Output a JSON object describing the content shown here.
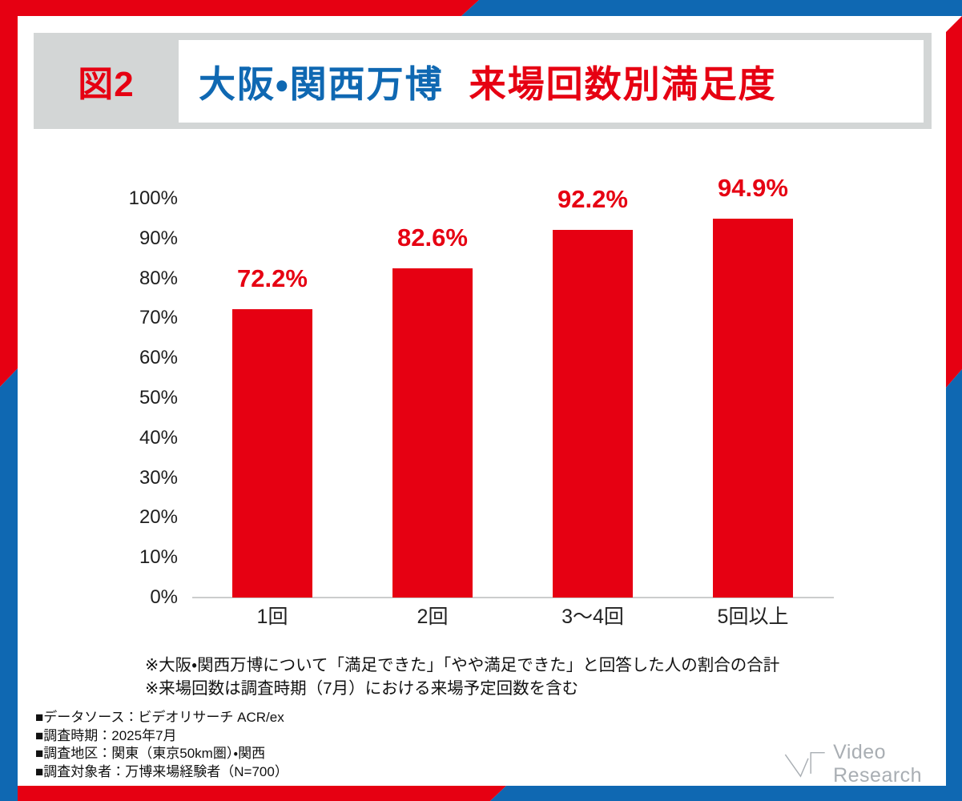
{
  "colors": {
    "red": "#e60012",
    "blue": "#0f68b2",
    "band_gray": "#d3d6d6",
    "baseline_gray": "#cbcdcd",
    "logo_gray": "#a9aeb3"
  },
  "header": {
    "figure_label": "図2",
    "title_part1": "大阪・関西万博",
    "title_part2": "来場回数別満足度"
  },
  "chart_data": {
    "type": "bar",
    "title": "大阪・関西万博 来場回数別満足度",
    "categories": [
      "1回",
      "2回",
      "3～4回",
      "5回以上"
    ],
    "values": [
      72.2,
      82.6,
      92.2,
      94.9
    ],
    "value_labels": [
      "72.2%",
      "82.6%",
      "92.2%",
      "94.9%"
    ],
    "y_ticks": [
      "100%",
      "90%",
      "80%",
      "70%",
      "60%",
      "50%",
      "40%",
      "30%",
      "20%",
      "10%",
      "0%"
    ],
    "ylim": [
      0,
      100
    ],
    "xlabel": "",
    "ylabel": "",
    "bar_color": "#e60012",
    "grid": false,
    "legend": null
  },
  "footnotes": [
    "※大阪・関西万博について「満足できた」「やや満足できた」と回答した人の割合の合計",
    "※来場回数は調査時期（7月）における来場予定回数を含む"
  ],
  "source_lines": [
    "■データソース：ビデオリサーチ ACR/ex",
    "■調査時期：2025年7月",
    "■調査地区：関東（東京50km圏）・関西",
    "■調査対象者：万博来場経験者（N=700）"
  ],
  "logo": {
    "text": "Video Research"
  }
}
